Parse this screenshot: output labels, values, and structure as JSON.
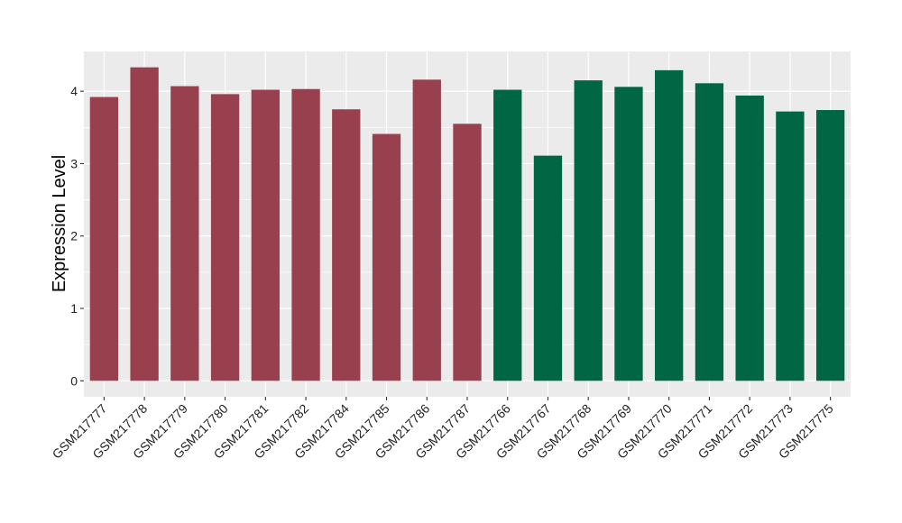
{
  "chart_data": {
    "type": "bar",
    "title": "",
    "xlabel": "",
    "ylabel": "Expression Level",
    "ylim": [
      -0.22,
      4.55
    ],
    "yticks": [
      0,
      1,
      2,
      3,
      4
    ],
    "grid": true,
    "legend": "none",
    "categories": [
      "GSM217777",
      "GSM217778",
      "GSM217779",
      "GSM217780",
      "GSM217781",
      "GSM217782",
      "GSM217784",
      "GSM217785",
      "GSM217786",
      "GSM217787",
      "GSM217766",
      "GSM217767",
      "GSM217768",
      "GSM217769",
      "GSM217770",
      "GSM217771",
      "GSM217772",
      "GSM217773",
      "GSM217775"
    ],
    "values": [
      3.92,
      4.33,
      4.07,
      3.96,
      4.02,
      4.03,
      3.75,
      3.41,
      4.16,
      3.55,
      4.02,
      3.11,
      4.15,
      4.06,
      4.29,
      4.11,
      3.94,
      3.72,
      3.74
    ],
    "colors": [
      "#98404e",
      "#98404e",
      "#98404e",
      "#98404e",
      "#98404e",
      "#98404e",
      "#98404e",
      "#98404e",
      "#98404e",
      "#98404e",
      "#006644",
      "#006644",
      "#006644",
      "#006644",
      "#006644",
      "#006644",
      "#006644",
      "#006644",
      "#006644"
    ],
    "panel_background": "#ebebeb",
    "grid_color": "#ffffff"
  }
}
